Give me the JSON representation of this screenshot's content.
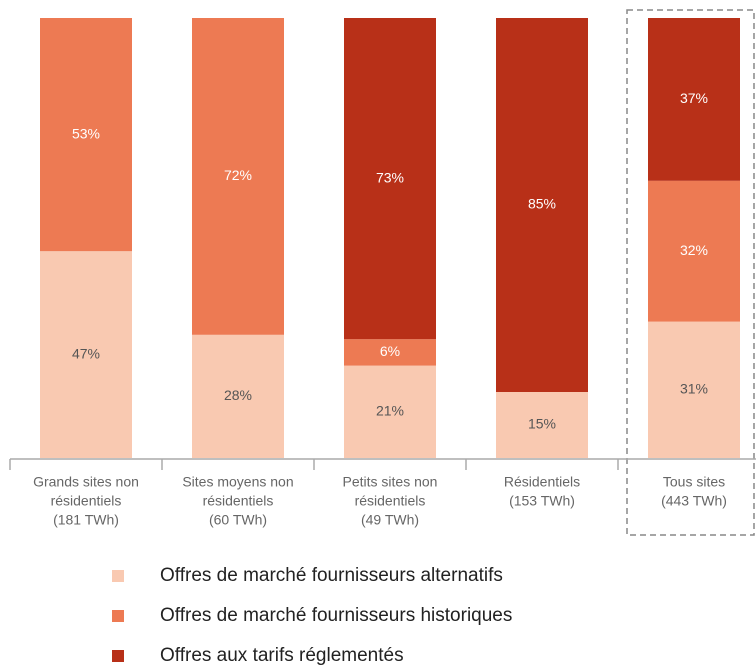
{
  "chart_data": {
    "type": "bar",
    "stacked": true,
    "categories": [
      [
        "Grands sites non",
        "résidentiels",
        "(181 TWh)"
      ],
      [
        "Sites moyens non",
        "résidentiels",
        "(60 TWh)"
      ],
      [
        "Petits sites non",
        "résidentiels",
        "(49 TWh)"
      ],
      [
        "Résidentiels",
        "(153 TWh)"
      ],
      [
        "Tous sites",
        "(443 TWh)"
      ]
    ],
    "series": [
      {
        "name": "Offres de marché fournisseurs alternatifs",
        "color": "#f9c9b1",
        "values": [
          47,
          28,
          21,
          15,
          31
        ],
        "value_labels": [
          "47%",
          "28%",
          "21%",
          "15%",
          "31%"
        ]
      },
      {
        "name": "Offres de marché fournisseurs historiques",
        "color": "#ed7a53",
        "values": [
          53,
          72,
          6,
          0,
          32
        ],
        "value_labels": [
          "53%",
          "72%",
          "6%",
          null,
          "32%"
        ]
      },
      {
        "name": "Offres aux tarifs réglementés",
        "color": "#b83018",
        "values": [
          0,
          0,
          73,
          85,
          37
        ],
        "value_labels": [
          null,
          null,
          "73%",
          "85%",
          "37%"
        ]
      }
    ],
    "ylim": [
      0,
      100
    ]
  }
}
